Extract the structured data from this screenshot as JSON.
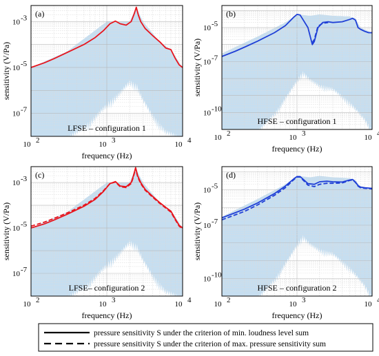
{
  "chart_data": [
    {
      "panel_label": "(a)",
      "type": "line",
      "x_scale": "log",
      "y_scale": "log",
      "xlim": [
        100,
        10000
      ],
      "ylim": [
        1e-08,
        0.005
      ],
      "x_ticks": [
        "10",
        "10",
        "10"
      ],
      "x_tick_exp": [
        "2",
        "3",
        "4"
      ],
      "y_ticks": [
        "10",
        "10",
        "10"
      ],
      "y_tick_exp": [
        "-7",
        "-5",
        "-3"
      ],
      "y_tick_values": [
        1e-07,
        1e-05,
        0.001
      ],
      "xlabel": "frequency (Hz)",
      "ylabel": "sensitivity (V/Pa)",
      "annotation": "LFSE – configuration 1",
      "color": "#e8141c",
      "fill_color": "#c6def0",
      "series": [
        {
          "style": "solid",
          "x": [
            100,
            150,
            200,
            300,
            500,
            700,
            900,
            1100,
            1300,
            1500,
            1800,
            2100,
            2300,
            2450,
            2600,
            2800,
            3200,
            4000,
            5000,
            6000,
            7000,
            8000,
            9000,
            10000
          ],
          "y": [
            1e-05,
            1.6e-05,
            2.4e-05,
            4.5e-05,
            0.0001,
            0.0002,
            0.0004,
            0.0008,
            0.00105,
            0.0008,
            0.0007,
            0.001,
            0.0022,
            0.0042,
            0.002,
            0.001,
            0.0005,
            0.00025,
            0.00013,
            7e-05,
            6e-05,
            2.5e-05,
            1.3e-05,
            1e-05
          ]
        }
      ],
      "fill_upper": {
        "x": [
          100,
          300,
          1000,
          2000,
          2450,
          3000,
          5000,
          7000,
          10000
        ],
        "y": [
          1e-05,
          5e-05,
          0.001,
          0.001,
          0.0042,
          0.001,
          0.00013,
          6e-05,
          1e-05
        ]
      },
      "fill_lower": {
        "x": [
          100,
          300,
          600,
          1000,
          1500,
          2000,
          2500,
          3000,
          4000,
          6000,
          10000
        ],
        "y": [
          1e-08,
          1e-08,
          5e-08,
          3e-07,
          1e-06,
          3e-06,
          2e-06,
          5e-07,
          1e-07,
          2e-08,
          1e-08
        ]
      }
    },
    {
      "panel_label": "(b)",
      "type": "line",
      "x_scale": "log",
      "y_scale": "log",
      "xlim": [
        100,
        10000
      ],
      "ylim": [
        1e-11,
        0.0002
      ],
      "x_ticks": [
        "10",
        "10",
        "10"
      ],
      "x_tick_exp": [
        "2",
        "3",
        "4"
      ],
      "y_ticks": [
        "10",
        "10",
        "10"
      ],
      "y_tick_exp": [
        "-10",
        "-7",
        "-5"
      ],
      "y_tick_values": [
        1e-10,
        1e-07,
        1e-05
      ],
      "xlabel": "frequency (Hz)",
      "ylabel": "sensitivity (V/Pa)",
      "annotation": "HFSE – configuration 1",
      "color": "#1f3fd6",
      "fill_color": "#c6def0",
      "series": [
        {
          "style": "solid",
          "x": [
            100,
            150,
            200,
            300,
            500,
            700,
            900,
            1000,
            1100,
            1200,
            1400,
            1600,
            1700,
            1900,
            2200,
            2600,
            3000,
            4000,
            5000,
            5500,
            6000,
            6500,
            7000,
            8000,
            9000,
            10000
          ],
          "y": [
            2e-07,
            4e-07,
            7e-07,
            1.6e-06,
            5e-06,
            1.3e-05,
            4e-05,
            6e-05,
            5.5e-05,
            3e-05,
            1e-05,
            1e-06,
            1.5e-06,
            1e-05,
            2e-05,
            2.2e-05,
            2e-05,
            2.2e-05,
            3e-05,
            3.5e-05,
            2.8e-05,
            1e-05,
            8e-06,
            6e-06,
            5e-06,
            5e-06
          ]
        },
        {
          "style": "dashed",
          "x": [
            1600,
            1700,
            1900,
            2200,
            2600
          ],
          "y": [
            1.3e-06,
            2e-06,
            1.2e-05,
            1.8e-05,
            2e-05
          ]
        }
      ],
      "fill_upper": {
        "x": [
          100,
          300,
          700,
          1000,
          1500,
          2000,
          3000,
          5000,
          6000,
          7000,
          10000
        ],
        "y": [
          3e-07,
          3e-06,
          2e-05,
          6e-05,
          5e-05,
          6e-05,
          5e-05,
          4.5e-05,
          3.5e-05,
          1e-05,
          5e-06
        ]
      },
      "fill_lower": {
        "x": [
          100,
          300,
          500,
          800,
          1000,
          1200,
          1500,
          2000,
          3000,
          5000,
          8000,
          10000
        ],
        "y": [
          1e-11,
          1e-11,
          1e-10,
          2e-09,
          1e-08,
          3e-08,
          1e-08,
          5e-09,
          3e-09,
          5e-10,
          5e-11,
          1e-11
        ]
      }
    },
    {
      "panel_label": "(c)",
      "type": "line",
      "x_scale": "log",
      "y_scale": "log",
      "xlim": [
        100,
        10000
      ],
      "ylim": [
        1e-08,
        0.005
      ],
      "x_ticks": [
        "10",
        "10",
        "10"
      ],
      "x_tick_exp": [
        "2",
        "3",
        "4"
      ],
      "y_ticks": [
        "10",
        "10",
        "10"
      ],
      "y_tick_exp": [
        "-7",
        "-5",
        "-3"
      ],
      "y_tick_values": [
        1e-07,
        1e-05,
        0.001
      ],
      "xlabel": "frequency (Hz)",
      "ylabel": "sensitivity (V/Pa)",
      "annotation": "LFSE– configuration 2",
      "color": "#e8141c",
      "fill_color": "#c6def0",
      "series": [
        {
          "style": "solid",
          "x": [
            100,
            150,
            200,
            300,
            500,
            700,
            900,
            1100,
            1300,
            1500,
            1800,
            2100,
            2250,
            2400,
            2550,
            2800,
            3200,
            4000,
            5000,
            6000,
            7000,
            8000,
            9000,
            10000
          ],
          "y": [
            1e-05,
            1.5e-05,
            2.2e-05,
            4e-05,
            9e-05,
            0.00018,
            0.0004,
            0.0009,
            0.0011,
            0.0007,
            0.00065,
            0.001,
            0.002,
            0.0045,
            0.002,
            0.001,
            0.0005,
            0.00025,
            0.00013,
            8e-05,
            5.5e-05,
            2.5e-05,
            1.3e-05,
            1e-05
          ]
        },
        {
          "style": "dashed",
          "x": [
            100,
            150,
            200,
            300,
            500,
            700,
            900,
            1100,
            1300,
            1500,
            1800,
            2100,
            2250,
            2400,
            2550,
            2800,
            3200,
            4000,
            5000,
            6000,
            7000,
            8000,
            9000,
            10000
          ],
          "y": [
            1.2e-05,
            1.8e-05,
            2.6e-05,
            4.6e-05,
            0.0001,
            0.0002,
            0.00043,
            0.0009,
            0.00105,
            0.00065,
            0.0006,
            0.0009,
            0.0018,
            0.0043,
            0.0018,
            0.0009,
            0.00046,
            0.00023,
            0.00012,
            7.5e-05,
            5e-05,
            2.3e-05,
            1.2e-05,
            9e-06
          ]
        }
      ],
      "fill_upper": {
        "x": [
          100,
          300,
          1000,
          2000,
          2400,
          3000,
          5000,
          7000,
          10000
        ],
        "y": [
          1e-05,
          5e-05,
          0.001,
          0.001,
          0.0045,
          0.001,
          0.00013,
          6e-05,
          1e-05
        ]
      },
      "fill_lower": {
        "x": [
          100,
          300,
          600,
          1000,
          1500,
          2000,
          2500,
          3000,
          4000,
          6000,
          10000
        ],
        "y": [
          1e-08,
          1e-08,
          5e-08,
          3e-07,
          1e-06,
          3e-06,
          2e-06,
          5e-07,
          1e-07,
          2e-08,
          1e-08
        ]
      }
    },
    {
      "panel_label": "(d)",
      "type": "line",
      "x_scale": "log",
      "y_scale": "log",
      "xlim": [
        100,
        10000
      ],
      "ylim": [
        1e-11,
        0.0002
      ],
      "x_ticks": [
        "10",
        "10",
        "10"
      ],
      "x_tick_exp": [
        "2",
        "3",
        "4"
      ],
      "y_ticks": [
        "10",
        "10",
        "10"
      ],
      "y_tick_exp": [
        "-10",
        "-7",
        "-5"
      ],
      "y_tick_values": [
        1e-10,
        1e-07,
        1e-05
      ],
      "xlabel": "frequency (Hz)",
      "ylabel": "sensitivity (V/Pa)",
      "annotation": "HFSE – configuration 2",
      "color": "#1f3fd6",
      "fill_color": "#c6def0",
      "series": [
        {
          "style": "solid",
          "x": [
            100,
            150,
            200,
            300,
            500,
            700,
            900,
            1000,
            1100,
            1200,
            1400,
            1700,
            2000,
            2500,
            3000,
            4000,
            5000,
            5500,
            6000,
            6500,
            7000,
            8000,
            10000
          ],
          "y": [
            2.6e-07,
            5e-07,
            8e-07,
            1.8e-06,
            6e-06,
            1.6e-05,
            4e-05,
            5.5e-05,
            5.5e-05,
            4e-05,
            2.2e-05,
            2e-05,
            2.8e-05,
            3e-05,
            2.8e-05,
            2.7e-05,
            3.5e-05,
            3.8e-05,
            2.7e-05,
            1.7e-05,
            1.4e-05,
            1.3e-05,
            1.2e-05
          ]
        },
        {
          "style": "dashed",
          "x": [
            100,
            150,
            200,
            300,
            500,
            700,
            900,
            1000,
            1100,
            1200,
            1400,
            1700,
            2000,
            2500,
            3000,
            4000,
            5000,
            5500,
            6000,
            6500,
            7000,
            8000,
            10000
          ],
          "y": [
            2e-07,
            3.8e-07,
            6e-07,
            1.4e-06,
            4.8e-06,
            1.3e-05,
            3.6e-05,
            5.2e-05,
            5.2e-05,
            3.6e-05,
            1.8e-05,
            1.5e-05,
            2e-05,
            2.3e-05,
            2.3e-05,
            2.4e-05,
            3.3e-05,
            3.6e-05,
            2.6e-05,
            1.6e-05,
            1.3e-05,
            1.2e-05,
            1.1e-05
          ]
        }
      ],
      "fill_upper": {
        "x": [
          100,
          300,
          700,
          1000,
          1500,
          2000,
          3000,
          5000,
          6000,
          7000,
          10000
        ],
        "y": [
          3e-07,
          3e-06,
          2e-05,
          6e-05,
          5e-05,
          6e-05,
          5e-05,
          4.5e-05,
          3.5e-05,
          1.5e-05,
          1.2e-05
        ]
      },
      "fill_lower": {
        "x": [
          100,
          300,
          500,
          800,
          1000,
          1200,
          1500,
          2000,
          3000,
          5000,
          8000,
          10000
        ],
        "y": [
          1e-11,
          1e-11,
          1e-10,
          2e-09,
          1e-08,
          3e-08,
          1e-08,
          5e-09,
          3e-09,
          5e-10,
          5e-11,
          1e-11
        ]
      }
    }
  ],
  "legend": {
    "placement": "bottom",
    "entries": [
      {
        "style": "solid",
        "label": "pressure sensitivity S under the criterion of min. loudness level sum"
      },
      {
        "style": "dashed",
        "label": "pressure sensitivity S under the criterion of max. pressure sensitivity sum"
      }
    ]
  }
}
